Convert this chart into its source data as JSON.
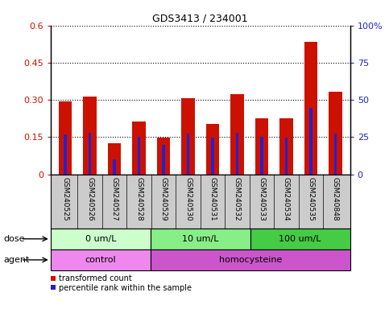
{
  "title": "GDS3413 / 234001",
  "samples": [
    "GSM240525",
    "GSM240526",
    "GSM240527",
    "GSM240528",
    "GSM240529",
    "GSM240530",
    "GSM240531",
    "GSM240532",
    "GSM240533",
    "GSM240534",
    "GSM240535",
    "GSM240848"
  ],
  "transformed_count": [
    0.295,
    0.315,
    0.125,
    0.215,
    0.148,
    0.308,
    0.205,
    0.325,
    0.228,
    0.228,
    0.535,
    0.335
  ],
  "percentile_rank_left": [
    0.16,
    0.168,
    0.06,
    0.15,
    0.118,
    0.165,
    0.148,
    0.168,
    0.15,
    0.148,
    0.27,
    0.165
  ],
  "bar_color": "#cc1100",
  "percentile_color": "#2222cc",
  "ylim_left": [
    0,
    0.6
  ],
  "ylim_right": [
    0,
    100
  ],
  "yticks_left": [
    0,
    0.15,
    0.3,
    0.45,
    0.6
  ],
  "ytick_labels_left": [
    "0",
    "0.15",
    "0.30",
    "0.45",
    "0.6"
  ],
  "yticks_right": [
    0,
    25,
    50,
    75,
    100
  ],
  "ytick_labels_right": [
    "0",
    "25",
    "50",
    "75",
    "100%"
  ],
  "dose_groups": [
    {
      "label": "0 um/L",
      "start": 0,
      "end": 4,
      "color": "#ccffcc"
    },
    {
      "label": "10 um/L",
      "start": 4,
      "end": 8,
      "color": "#88ee88"
    },
    {
      "label": "100 um/L",
      "start": 8,
      "end": 12,
      "color": "#44cc44"
    }
  ],
  "agent_groups": [
    {
      "label": "control",
      "start": 0,
      "end": 4,
      "color": "#ee88ee"
    },
    {
      "label": "homocysteine",
      "start": 4,
      "end": 12,
      "color": "#cc55cc"
    }
  ],
  "dose_label": "dose",
  "agent_label": "agent",
  "legend_items": [
    {
      "label": "transformed count",
      "color": "#cc1100"
    },
    {
      "label": "percentile rank within the sample",
      "color": "#2222cc"
    }
  ],
  "red_bar_width": 0.55,
  "blue_bar_width": 0.12
}
